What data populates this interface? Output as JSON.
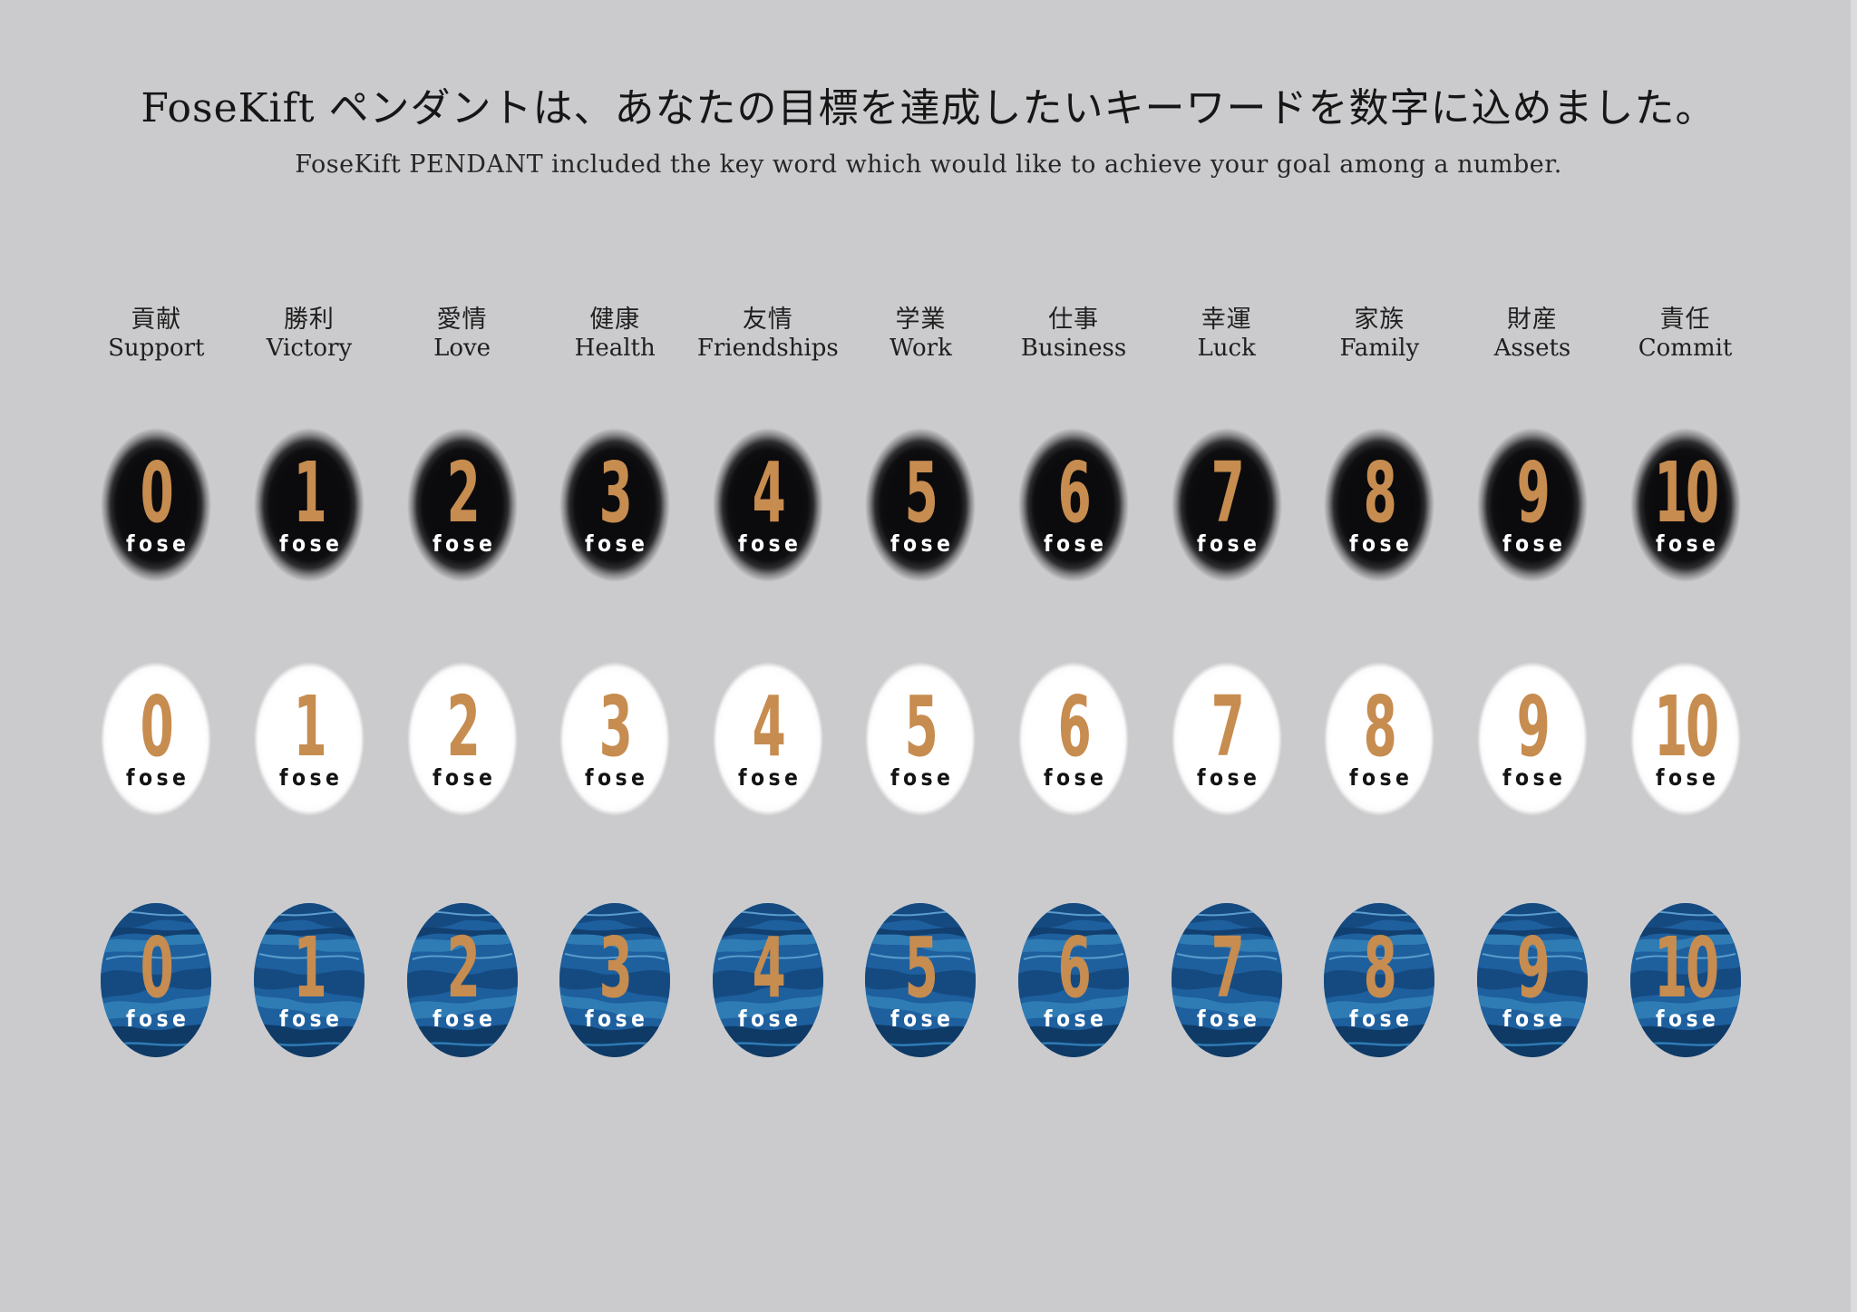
{
  "page": {
    "background_color": "#cbcbcd",
    "right_edge_strip_color": "#dcdcde"
  },
  "header": {
    "title_ja": "FoseKift ペンダントは、あなたの目標を達成したいキーワードを数字に込めました。",
    "subtitle_en": "FoseKift PENDANT included the key word which would like to achieve your goal among a number."
  },
  "columns": [
    {
      "ja": "貢献",
      "en": "Support",
      "number": "0"
    },
    {
      "ja": "勝利",
      "en": "Victory",
      "number": "1"
    },
    {
      "ja": "愛情",
      "en": "Love",
      "number": "2"
    },
    {
      "ja": "健康",
      "en": "Health",
      "number": "3"
    },
    {
      "ja": "友情",
      "en": "Friendships",
      "number": "4"
    },
    {
      "ja": "学業",
      "en": "Work",
      "number": "5"
    },
    {
      "ja": "仕事",
      "en": "Business",
      "number": "6"
    },
    {
      "ja": "幸運",
      "en": "Luck",
      "number": "7"
    },
    {
      "ja": "家族",
      "en": "Family",
      "number": "8"
    },
    {
      "ja": "財産",
      "en": "Assets",
      "number": "9"
    },
    {
      "ja": "責任",
      "en": "Commit",
      "number": "10"
    }
  ],
  "rows": [
    {
      "variant": "black",
      "label": "black pendant row"
    },
    {
      "variant": "white",
      "label": "white pendant row"
    },
    {
      "variant": "blue",
      "label": "blue marble pendant row"
    }
  ],
  "pendant": {
    "brand": "fose",
    "number_color": "#c78c4f",
    "black_fill": "#0b0b0d",
    "white_fill": "#ffffff",
    "blue_marble_palette": [
      "#0f3a66",
      "#154a80",
      "#1e5f9e",
      "#2f7cb5",
      "#5a9dcc"
    ]
  }
}
